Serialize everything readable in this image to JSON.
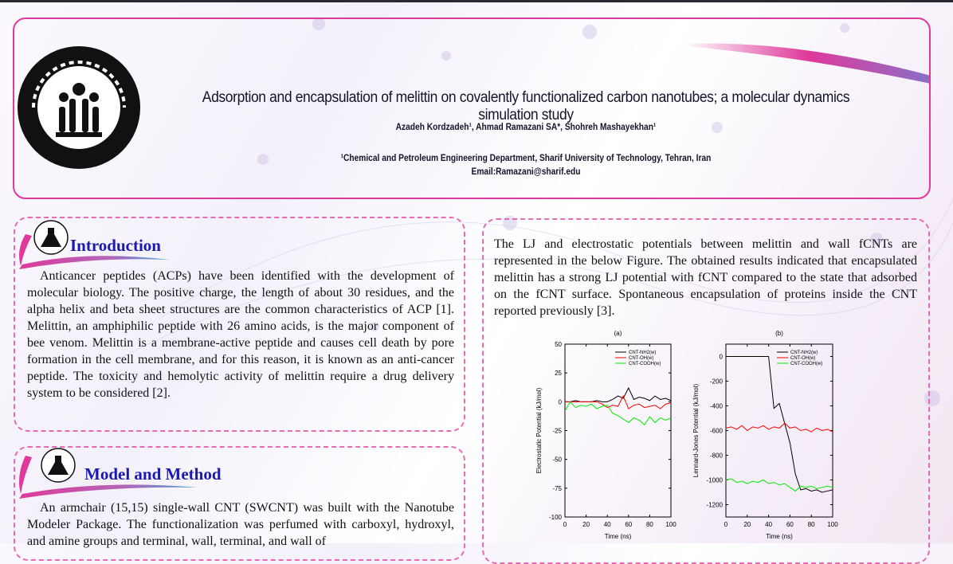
{
  "header": {
    "title": "Adsorption and encapsulation of melittin on covalently functionalized carbon nanotubes; a molecular dynamics simulation study",
    "authors": "Azadeh Kordzadeh¹, Ahmad Ramazani SA*, Shohreh Mashayekhan¹",
    "affiliation": "¹Chemical and Petroleum Engineering Department, Sharif University of Technology, Tehran, Iran",
    "email": "Email:Ramazani@sharif.edu",
    "logo_icon": "sharif-university-logo"
  },
  "colors": {
    "accent_pink": "#e0399b",
    "section_title": "#1a1ab0",
    "nh2": "#000000",
    "oh": "#ff0000",
    "cooh": "#00ee00"
  },
  "sections": {
    "introduction": {
      "title": "Introduction",
      "icon": "flask-icon",
      "text": "Anticancer peptides (ACPs) have been identified with the development of molecular biology. The positive charge, the length of about 30 residues, and the alpha helix and beta sheet structures are the common characteristics of ACP [1]. Melittin, an amphiphilic peptide with 26 amino acids, is the major component of bee venom. Melittin is a membrane-active peptide and causes cell death by pore formation in the cell membrane, and for this reason, it is known as an anti-cancer peptide. The toxicity and hemolytic activity of melittin require a drug delivery system to be considered [2]."
    },
    "method": {
      "title": "Model and Method",
      "icon": "flask-icon",
      "text": "An armchair (15,15) single-wall CNT (SWCNT) was built with the Nanotube Modeler Package. The functionalization was perfumed with carboxyl, hydroxyl, and amine groups and terminal, wall, terminal, and wall of"
    },
    "results": {
      "text": "The LJ and electrostatic potentials between melittin and wall fCNTs are represented in the below Figure. The obtained results indicated that encapsulated melittin has a strong LJ potential with fCNT compared to the state that adsorbed on the fCNT surface. Spontaneous encapsulation of proteins inside the CNT reported previously [3]."
    }
  },
  "chart_data": [
    {
      "type": "line",
      "title": "(a)",
      "xlabel": "Time (ns)",
      "ylabel": "Electrostatic Potential (kJ/mol)",
      "xlim": [
        0,
        100
      ],
      "ylim": [
        -100,
        50
      ],
      "xticks": [
        "0",
        "20",
        "40",
        "60",
        "80",
        "100"
      ],
      "yticks": [
        "50",
        "25",
        "0",
        "-25",
        "-50",
        "-75",
        "-100"
      ],
      "legend": "top-right",
      "x": [
        0,
        5,
        10,
        15,
        20,
        25,
        30,
        35,
        40,
        45,
        50,
        55,
        60,
        65,
        70,
        75,
        80,
        85,
        90,
        95,
        100
      ],
      "series": [
        {
          "name": "CNT-NH2(w)",
          "color": "#000000",
          "values": [
            0,
            0,
            1,
            0,
            0,
            0,
            1,
            0,
            0,
            2,
            5,
            3,
            12,
            2,
            4,
            3,
            1,
            5,
            2,
            3,
            1
          ]
        },
        {
          "name": "CNT-OH(w)",
          "color": "#ff0000",
          "values": [
            0,
            0,
            0,
            0,
            0,
            0,
            0,
            -2,
            -5,
            -3,
            -4,
            5,
            -6,
            -3,
            -2,
            -5,
            -4,
            -3,
            -6,
            -2,
            -1
          ]
        },
        {
          "name": "CNT-COOH(w)",
          "color": "#00ee00",
          "values": [
            -8,
            0,
            -5,
            -3,
            -4,
            -2,
            -6,
            -4,
            -3,
            -10,
            -12,
            -15,
            -18,
            -14,
            -16,
            -20,
            -13,
            -18,
            -14,
            -16,
            -14
          ]
        }
      ]
    },
    {
      "type": "line",
      "title": "(b)",
      "xlabel": "Time (ns)",
      "ylabel": "Lennard-Jones Potential (kJ/mol)",
      "xlim": [
        0,
        100
      ],
      "ylim": [
        -1300,
        100
      ],
      "xticks": [
        "0",
        "20",
        "40",
        "60",
        "80",
        "100"
      ],
      "yticks": [
        "0",
        "-200",
        "-400",
        "-600",
        "-800",
        "-1000",
        "-1200"
      ],
      "legend": "top-right",
      "x": [
        0,
        5,
        10,
        15,
        20,
        25,
        30,
        35,
        40,
        45,
        50,
        55,
        60,
        65,
        70,
        75,
        80,
        85,
        90,
        95,
        100
      ],
      "series": [
        {
          "name": "CNT-NH2(w)",
          "color": "#000000",
          "values": [
            0,
            0,
            0,
            0,
            0,
            0,
            0,
            0,
            0,
            -420,
            -380,
            -540,
            -700,
            -950,
            -1080,
            -1070,
            -1090,
            -1080,
            -1100,
            -1090,
            -1080
          ]
        },
        {
          "name": "CNT-OH(w)",
          "color": "#ff0000",
          "values": [
            -580,
            -570,
            -590,
            -560,
            -600,
            -570,
            -580,
            -560,
            -590,
            -570,
            -580,
            -540,
            -580,
            -570,
            -600,
            -590,
            -610,
            -580,
            -600,
            -590,
            -610
          ]
        },
        {
          "name": "CNT-COOH(w)",
          "color": "#00ee00",
          "values": [
            -1000,
            -990,
            -1020,
            -1010,
            -1030,
            -1010,
            -1020,
            -1000,
            -1030,
            -1020,
            -1040,
            -1030,
            -1060,
            -1090,
            -1050,
            -1060,
            -1050,
            -1070,
            -1060,
            -1050,
            -1060
          ]
        }
      ]
    }
  ]
}
